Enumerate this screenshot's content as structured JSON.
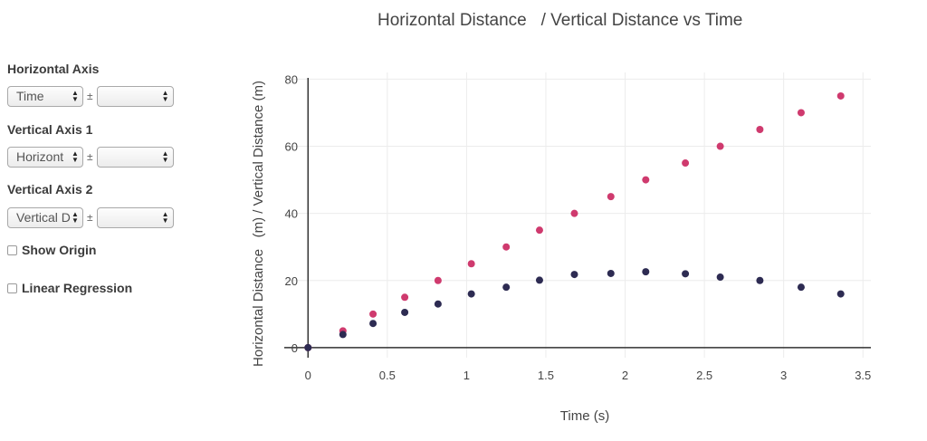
{
  "controls": {
    "horizontal_axis": {
      "label": "Horizontal Axis",
      "selected": "Time",
      "pm": "±",
      "error_selected": ""
    },
    "vertical_axis_1": {
      "label": "Vertical Axis 1",
      "selected": "Horizont",
      "pm": "±",
      "error_selected": ""
    },
    "vertical_axis_2": {
      "label": "Vertical Axis 2",
      "selected": "Vertical D",
      "pm": "±",
      "error_selected": ""
    },
    "show_origin": {
      "label": "Show Origin",
      "checked": false
    },
    "linear_regression": {
      "label": "Linear Regression",
      "checked": false
    }
  },
  "chart_data": {
    "type": "scatter",
    "title": "Horizontal Distance   / Vertical Distance vs Time",
    "xlabel": "Time (s)",
    "ylabel": "Horizontal Distance   (m) / Vertical Distance (m)",
    "xlim": [
      -0.15,
      3.55
    ],
    "ylim": [
      -3,
      82
    ],
    "x_ticks": [
      0,
      0.5,
      1,
      1.5,
      2,
      2.5,
      3,
      3.5
    ],
    "x_tick_labels": [
      "0",
      "0.5",
      "1",
      "1.5",
      "2",
      "2.5",
      "3",
      "3.5"
    ],
    "y_ticks": [
      0,
      20,
      40,
      60,
      80
    ],
    "y_tick_labels": [
      "0",
      "20",
      "40",
      "60",
      "80"
    ],
    "grid": true,
    "series": [
      {
        "color": "#cf3a6e",
        "x": [
          0,
          0.22,
          0.41,
          0.61,
          0.82,
          1.03,
          1.25,
          1.46,
          1.68,
          1.91,
          2.13,
          2.38,
          2.6,
          2.85,
          3.11,
          3.36
        ],
        "y": [
          0,
          5,
          10,
          15,
          20,
          25,
          30,
          35,
          40,
          45,
          50,
          55,
          60,
          65,
          70,
          75
        ]
      },
      {
        "color": "#2d2b52",
        "x": [
          0,
          0.22,
          0.41,
          0.61,
          0.82,
          1.03,
          1.25,
          1.46,
          1.68,
          1.91,
          2.13,
          2.38,
          2.6,
          2.85,
          3.11,
          3.36
        ],
        "y": [
          0,
          3.9,
          7.2,
          10.5,
          13,
          16,
          18,
          20.1,
          21.8,
          22.1,
          22.6,
          22,
          21,
          20,
          18,
          16
        ]
      }
    ]
  }
}
